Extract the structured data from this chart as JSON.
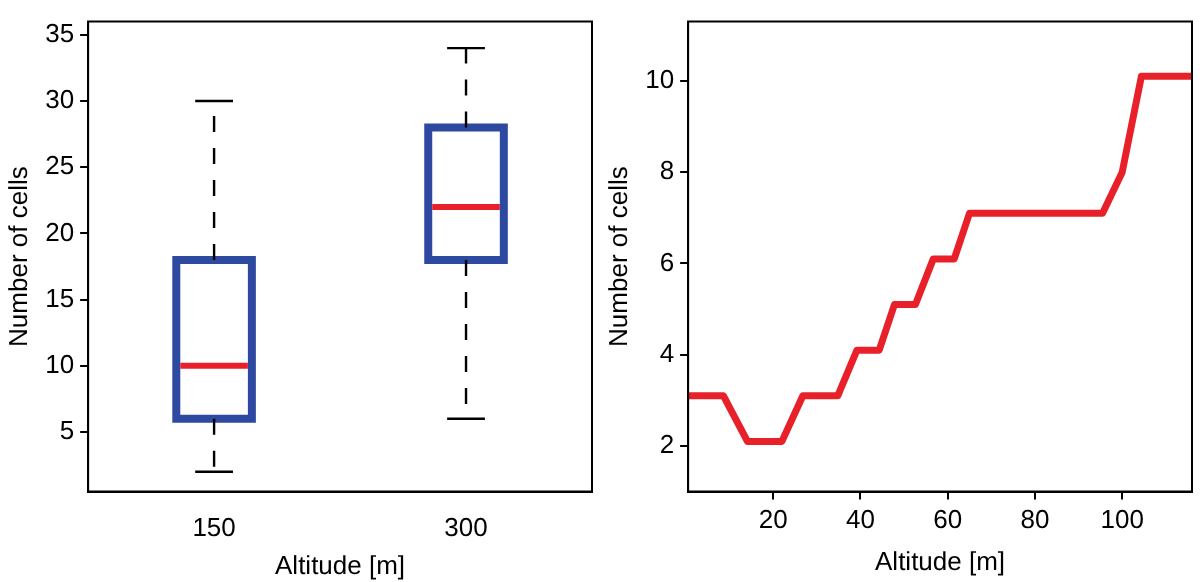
{
  "chart_data": [
    {
      "type": "box",
      "xlabel": "Altitude [m]",
      "ylabel": "Number of cells",
      "categories": [
        "150",
        "300"
      ],
      "series": [
        {
          "color": "#2e49a0",
          "boxes": [
            {
              "low": 2,
              "q1": 6,
              "median": 10,
              "q3": 18,
              "high": 30
            },
            {
              "low": 6,
              "q1": 18,
              "median": 22,
              "q3": 28,
              "high": 34
            }
          ]
        }
      ],
      "ylim": [
        0.5,
        36
      ],
      "yticks": [
        5,
        10,
        15,
        20,
        25,
        30,
        35
      ],
      "grid": false,
      "legend": false
    },
    {
      "type": "line",
      "xlabel": "Altitude [m]",
      "ylabel": "Number of cells",
      "x": [
        0.6,
        8.6,
        14.1,
        22,
        26.8,
        34.8,
        39.2,
        44.3,
        47.8,
        52.6,
        56.7,
        61.5,
        65,
        95.5,
        100,
        104.4,
        116
      ],
      "series": [
        {
          "color": "#e8202a",
          "values": [
            3.1,
            3.1,
            2.1,
            2.1,
            3.1,
            3.1,
            4.1,
            4.1,
            5.1,
            5.1,
            6.1,
            6.1,
            7.1,
            7.1,
            8,
            10.1,
            10.1
          ]
        }
      ],
      "xlim": [
        0.5,
        116
      ],
      "xticks": [
        20,
        40,
        60,
        80,
        100
      ],
      "ylim": [
        1,
        11.3
      ],
      "yticks": [
        2,
        4,
        6,
        8,
        10
      ],
      "grid": false,
      "legend": false,
      "marker": "none",
      "line_style": "solid"
    }
  ]
}
